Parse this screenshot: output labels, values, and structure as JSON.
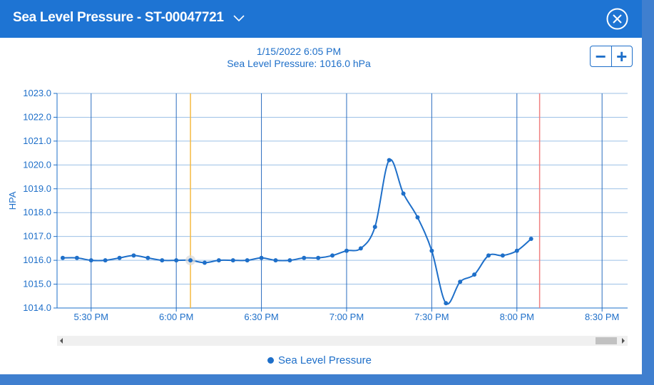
{
  "header": {
    "title": "Sea Level Pressure - ST-00047721"
  },
  "tooltip": {
    "time": "1/15/2022 6:05 PM",
    "value": "Sea Level Pressure: 1016.0 hPa"
  },
  "zoom": {
    "out": "−",
    "in": "+"
  },
  "colors": {
    "accent": "#1e74d3",
    "series": "#1e6fc9",
    "cursor": "#f5b942",
    "now": "#f08080"
  },
  "chart_data": {
    "type": "line",
    "title": "",
    "xlabel": "",
    "ylabel": "HPA",
    "ylim": [
      1014.0,
      1023.0
    ],
    "yticks": [
      "1014.0",
      "1015.0",
      "1016.0",
      "1017.0",
      "1018.0",
      "1019.0",
      "1020.0",
      "1021.0",
      "1022.0",
      "1023.0"
    ],
    "x_unit": "minutes after 5:00 PM",
    "xlim": [
      18,
      219
    ],
    "xticks": [
      {
        "m": 30,
        "label": "5:30 PM"
      },
      {
        "m": 60,
        "label": "6:00 PM"
      },
      {
        "m": 90,
        "label": "6:30 PM"
      },
      {
        "m": 120,
        "label": "7:00 PM"
      },
      {
        "m": 150,
        "label": "7:30 PM"
      },
      {
        "m": 180,
        "label": "8:00 PM"
      },
      {
        "m": 210,
        "label": "8:30 PM"
      }
    ],
    "series": [
      {
        "name": "Sea Level Pressure",
        "x": [
          20,
          25,
          30,
          35,
          40,
          45,
          50,
          55,
          60,
          65,
          70,
          75,
          80,
          85,
          90,
          95,
          100,
          105,
          110,
          115,
          120,
          125,
          130,
          135,
          140,
          145,
          150,
          155,
          160,
          165,
          170,
          175,
          180,
          185
        ],
        "values": [
          1016.1,
          1016.1,
          1016.0,
          1016.0,
          1016.1,
          1016.2,
          1016.1,
          1016.0,
          1016.0,
          1016.0,
          1015.9,
          1016.0,
          1016.0,
          1016.0,
          1016.1,
          1016.0,
          1016.0,
          1016.1,
          1016.1,
          1016.2,
          1016.4,
          1016.5,
          1017.4,
          1020.2,
          1018.8,
          1017.8,
          1016.4,
          1014.2,
          1015.1,
          1015.4,
          1016.2,
          1016.2,
          1016.4,
          1016.9
        ]
      }
    ],
    "cursor_x": 65,
    "now_x": 188,
    "grid": true,
    "legend": "bottom-center"
  }
}
